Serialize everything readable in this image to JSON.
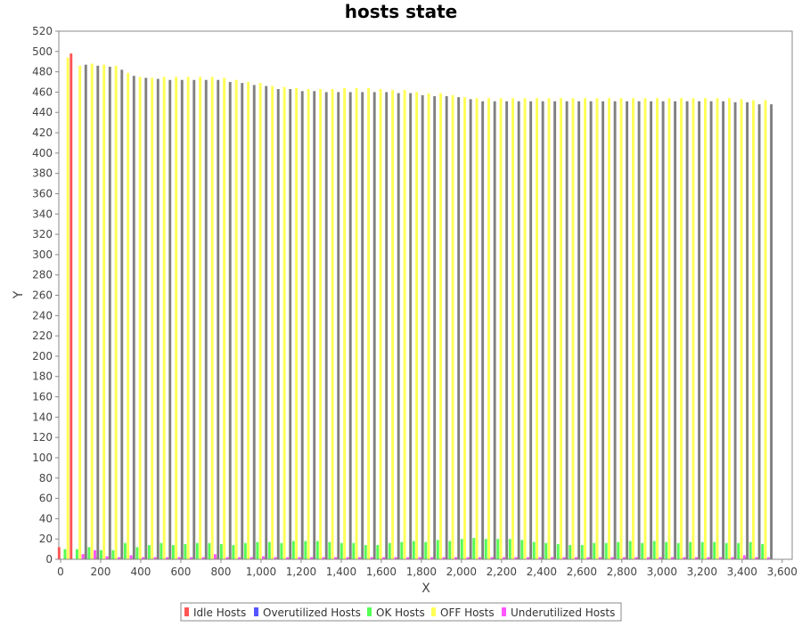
{
  "chart_data": {
    "type": "bar",
    "title": "hosts state",
    "xlabel": "X",
    "ylabel": "Y",
    "xlim": [
      0,
      3650
    ],
    "ylim": [
      0,
      520
    ],
    "x_ticks": [
      0,
      200,
      400,
      600,
      800,
      1000,
      1200,
      1400,
      1600,
      1800,
      2000,
      2200,
      2400,
      2600,
      2800,
      3000,
      3200,
      3400,
      3600
    ],
    "x_tick_labels": [
      "0",
      "200",
      "400",
      "600",
      "800",
      "1,000",
      "1,200",
      "1,400",
      "1,600",
      "1,800",
      "2,000",
      "2,200",
      "2,400",
      "2,600",
      "2,800",
      "3,000",
      "3,200",
      "3,400",
      "3,600"
    ],
    "y_ticks": [
      0,
      20,
      40,
      60,
      80,
      100,
      120,
      140,
      160,
      180,
      200,
      220,
      240,
      260,
      280,
      300,
      320,
      340,
      360,
      380,
      400,
      420,
      440,
      460,
      480,
      500,
      520
    ],
    "grid": false,
    "legend_position": "bottom",
    "x": [
      30,
      90,
      150,
      210,
      270,
      330,
      390,
      450,
      510,
      570,
      630,
      690,
      750,
      810,
      870,
      930,
      990,
      1050,
      1110,
      1170,
      1230,
      1290,
      1350,
      1410,
      1470,
      1530,
      1590,
      1650,
      1710,
      1770,
      1830,
      1890,
      1950,
      2010,
      2070,
      2130,
      2190,
      2250,
      2310,
      2370,
      2430,
      2490,
      2550,
      2610,
      2670,
      2730,
      2790,
      2850,
      2910,
      2970,
      3030,
      3090,
      3150,
      3210,
      3270,
      3330,
      3390,
      3450,
      3510
    ],
    "series": [
      {
        "name": "Idle Hosts",
        "color": "#ff5555",
        "values": [
          12,
          498,
          5,
          2,
          2,
          2,
          2,
          2,
          2,
          2,
          2,
          2,
          2,
          2,
          2,
          2,
          2,
          2,
          2,
          2,
          2,
          2,
          2,
          2,
          2,
          2,
          2,
          2,
          2,
          2,
          2,
          2,
          2,
          2,
          2,
          2,
          2,
          2,
          2,
          2,
          2,
          2,
          2,
          2,
          2,
          2,
          2,
          2,
          2,
          2,
          2,
          2,
          2,
          2,
          2,
          2,
          2,
          2,
          2
        ]
      },
      {
        "name": "Overutilized Hosts",
        "color": "#5555ff",
        "values": [
          0,
          0,
          0,
          0,
          0,
          0,
          0,
          0,
          0,
          0,
          0,
          0,
          0,
          0,
          0,
          0,
          0,
          0,
          0,
          0,
          0,
          0,
          0,
          0,
          0,
          0,
          0,
          0,
          0,
          0,
          0,
          0,
          0,
          0,
          0,
          0,
          0,
          0,
          0,
          0,
          0,
          0,
          0,
          0,
          0,
          0,
          0,
          0,
          0,
          0,
          0,
          0,
          0,
          0,
          0,
          0,
          0,
          0,
          0
        ]
      },
      {
        "name": "OK Hosts",
        "color": "#55ff55",
        "values": [
          10,
          10,
          12,
          9,
          9,
          16,
          12,
          14,
          16,
          14,
          15,
          16,
          16,
          15,
          14,
          16,
          17,
          17,
          16,
          18,
          18,
          18,
          17,
          16,
          16,
          14,
          14,
          16,
          17,
          18,
          17,
          19,
          18,
          20,
          21,
          20,
          20,
          20,
          19,
          17,
          16,
          15,
          14,
          14,
          16,
          16,
          17,
          18,
          16,
          18,
          17,
          16,
          17,
          17,
          17,
          16,
          16,
          17,
          15
        ]
      },
      {
        "name": "OFF Hosts",
        "color": "#ffff55",
        "values": [
          494,
          486,
          488,
          487,
          486,
          479,
          475,
          474,
          475,
          475,
          475,
          475,
          475,
          474,
          472,
          470,
          469,
          466,
          465,
          464,
          463,
          463,
          463,
          464,
          464,
          464,
          463,
          462,
          462,
          460,
          459,
          459,
          457,
          455,
          454,
          454,
          454,
          454,
          454,
          454,
          454,
          454,
          454,
          454,
          454,
          454,
          454,
          454,
          454,
          454,
          454,
          454,
          454,
          454,
          454,
          454,
          453,
          452,
          452
        ]
      },
      {
        "name": "Underutilized Hosts",
        "color": "#ff55ff",
        "values": [
          0,
          5,
          9,
          3,
          2,
          4,
          2,
          2,
          2,
          2,
          2,
          2,
          5,
          2,
          2,
          2,
          3,
          2,
          2,
          2,
          2,
          2,
          2,
          2,
          2,
          2,
          2,
          2,
          2,
          2,
          2,
          2,
          2,
          2,
          2,
          2,
          2,
          2,
          2,
          2,
          2,
          2,
          2,
          2,
          2,
          2,
          2,
          2,
          2,
          2,
          2,
          2,
          2,
          2,
          2,
          2,
          4,
          2,
          2
        ]
      },
      {
        "name": "",
        "color": "#808080",
        "values": [
          0,
          487,
          486,
          485,
          482,
          476,
          474,
          473,
          472,
          472,
          472,
          472,
          472,
          470,
          469,
          467,
          466,
          463,
          463,
          461,
          461,
          460,
          460,
          460,
          460,
          460,
          460,
          459,
          459,
          457,
          456,
          456,
          455,
          453,
          451,
          451,
          451,
          451,
          451,
          451,
          451,
          451,
          451,
          451,
          451,
          451,
          451,
          451,
          451,
          451,
          451,
          451,
          451,
          451,
          451,
          450,
          450,
          448,
          448
        ]
      }
    ]
  }
}
